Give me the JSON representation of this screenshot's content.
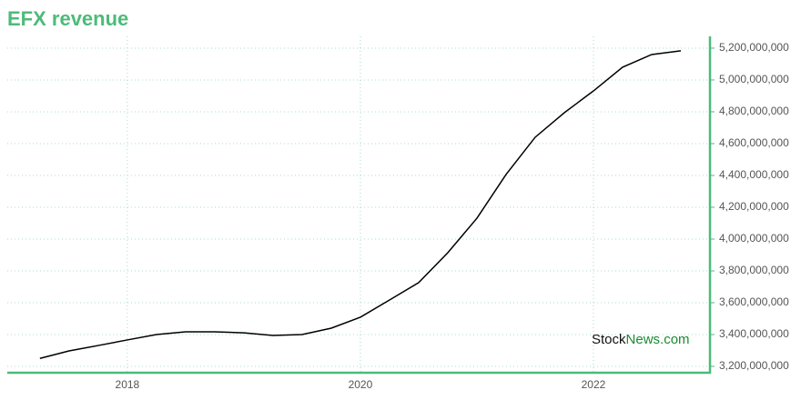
{
  "chart_data": {
    "type": "line",
    "title": "EFX revenue",
    "watermark": [
      "Stock",
      "News.com"
    ],
    "x": [
      2017.25,
      2017.5,
      2017.75,
      2018.0,
      2018.25,
      2018.5,
      2018.75,
      2019.0,
      2019.25,
      2019.5,
      2019.75,
      2020.0,
      2020.25,
      2020.5,
      2020.75,
      2021.0,
      2021.25,
      2021.5,
      2021.75,
      2022.0,
      2022.25,
      2022.5,
      2022.75
    ],
    "series": [
      {
        "name": "EFX revenue",
        "color": "#000000",
        "values": [
          3250000000,
          3297000000,
          3331000000,
          3366000000,
          3400000000,
          3417000000,
          3417000000,
          3411000000,
          3394000000,
          3400000000,
          3440000000,
          3509000000,
          3617000000,
          3726000000,
          3914000000,
          4131000000,
          4406000000,
          4640000000,
          4794000000,
          4931000000,
          5080000000,
          5160000000,
          5183000000
        ]
      }
    ],
    "xlim": [
      2016.97,
      2023.0
    ],
    "xticks": [
      2018,
      2020,
      2022
    ],
    "ylim": [
      3160000000,
      5274000000
    ],
    "yticks": [
      {
        "value": 3200000000,
        "label": "3,200,000,000"
      },
      {
        "value": 3400000000,
        "label": "3,400,000,000"
      },
      {
        "value": 3600000000,
        "label": "3,600,000,000"
      },
      {
        "value": 3800000000,
        "label": "3,800,000,000"
      },
      {
        "value": 4000000000,
        "label": "4,000,000,000"
      },
      {
        "value": 4200000000,
        "label": "4,200,000,000"
      },
      {
        "value": 4400000000,
        "label": "4,400,000,000"
      },
      {
        "value": 4600000000,
        "label": "4,600,000,000"
      },
      {
        "value": 4800000000,
        "label": "4,800,000,000"
      },
      {
        "value": 5000000000,
        "label": "5,000,000,000"
      },
      {
        "value": 5200000000,
        "label": "5,200,000,000"
      }
    ],
    "grid": true
  }
}
